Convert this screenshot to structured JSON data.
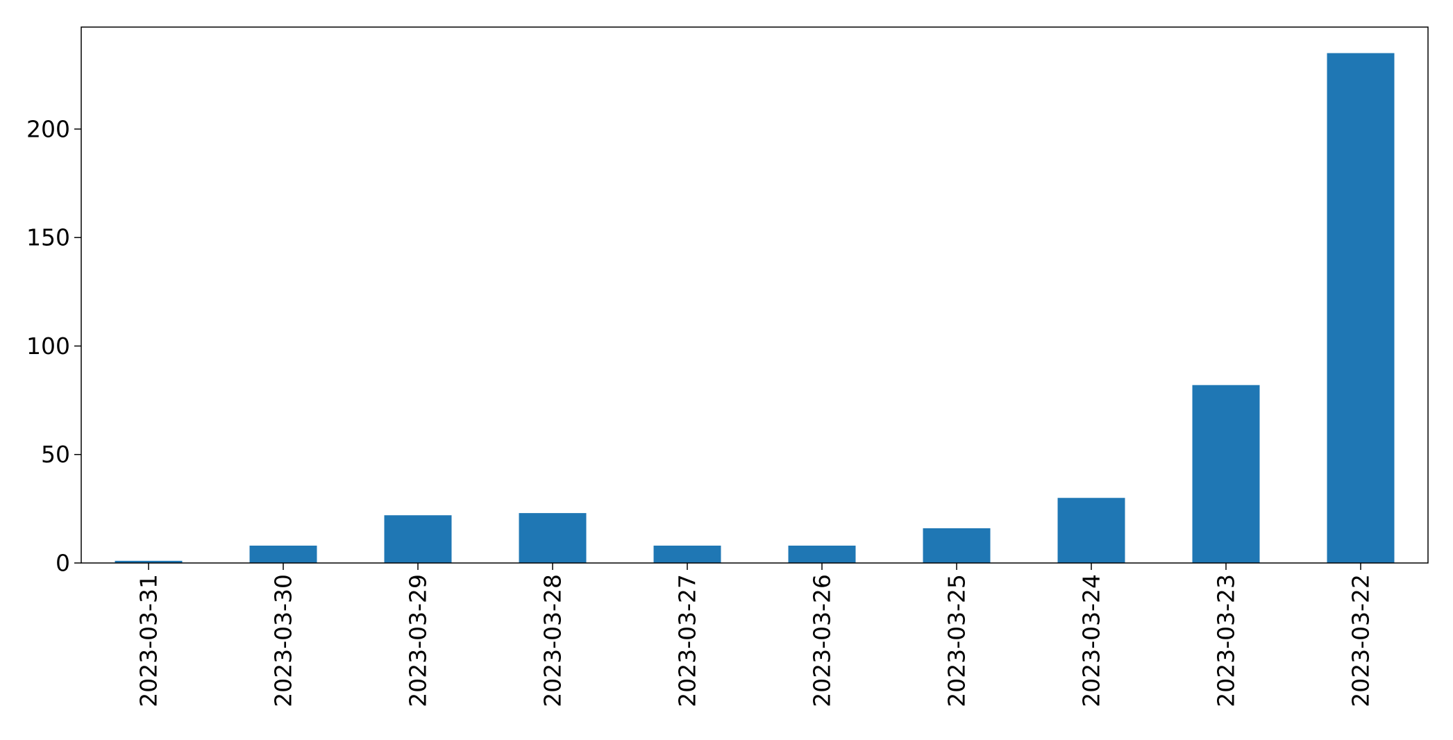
{
  "chart_data": {
    "type": "bar",
    "title": "",
    "xlabel": "",
    "ylabel": "",
    "categories": [
      "2023-03-31",
      "2023-03-30",
      "2023-03-29",
      "2023-03-28",
      "2023-03-27",
      "2023-03-26",
      "2023-03-25",
      "2023-03-24",
      "2023-03-23",
      "2023-03-22"
    ],
    "values": [
      1,
      8,
      22,
      23,
      8,
      8,
      16,
      30,
      82,
      235
    ],
    "ylim": [
      0,
      247
    ],
    "yticks": [
      0,
      50,
      100,
      150,
      200
    ],
    "bar_color": "#1f77b4",
    "grid": false,
    "legend": "none"
  }
}
